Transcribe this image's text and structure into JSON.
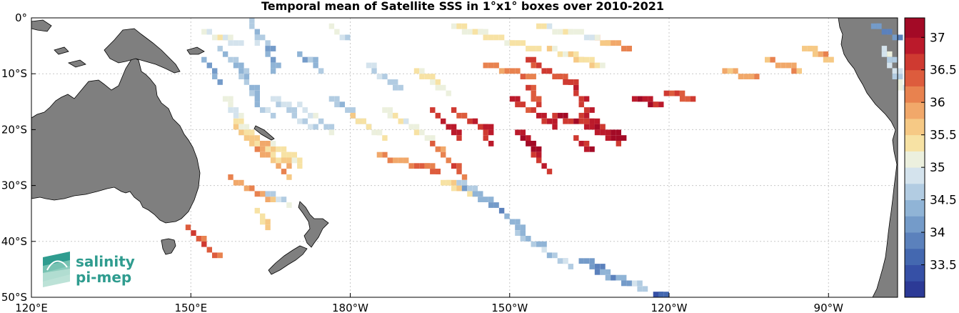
{
  "title": "Temporal mean of Satellite SSS in 1°x1° boxes over 2010-2021",
  "logo": {
    "line1": "salinity",
    "line2": "pi-mep"
  },
  "axes": {
    "x_ticks": [
      {
        "lon": 120,
        "label": "120°E"
      },
      {
        "lon": 150,
        "label": "150°E"
      },
      {
        "lon": 180,
        "label": "180°W"
      },
      {
        "lon": 210,
        "label": "150°W"
      },
      {
        "lon": 240,
        "label": "120°W"
      },
      {
        "lon": 270,
        "label": "90°W"
      }
    ],
    "y_ticks": [
      {
        "lat": 0,
        "label": "0°"
      },
      {
        "lat": -10,
        "label": "10°S"
      },
      {
        "lat": -20,
        "label": "20°S"
      },
      {
        "lat": -30,
        "label": "30°S"
      },
      {
        "lat": -40,
        "label": "40°S"
      },
      {
        "lat": -50,
        "label": "50°S"
      }
    ],
    "lon_range": [
      120,
      283
    ],
    "lat_range": [
      -50,
      0
    ],
    "grid": true
  },
  "colorbar": {
    "range": [
      33.0,
      37.3
    ],
    "tick_labels": [
      "37",
      "36.5",
      "36",
      "35.5",
      "35",
      "34.5",
      "34",
      "33.5"
    ],
    "tick_values": [
      37,
      36.5,
      36,
      35.5,
      35,
      34.5,
      34,
      33.5
    ],
    "colors": [
      "#2c3a96",
      "#3650a6",
      "#4468b0",
      "#5b81bc",
      "#749bc9",
      "#90b4d6",
      "#b2cce2",
      "#d4e3ed",
      "#ecf0de",
      "#f7e2a4",
      "#f6c985",
      "#f1a86a",
      "#e8824f",
      "#dd5c3d",
      "#cf3a31",
      "#bb1a2b",
      "#a30a26"
    ],
    "color_min": 33.0,
    "color_step": 0.25
  },
  "chart_data": {
    "type": "heatmap",
    "variable": "SSS",
    "units": "pss",
    "segments": [
      {
        "lon": [
          152,
          158
        ],
        "lat": [
          -2,
          -4
        ],
        "value": 35.1
      },
      {
        "lon": [
          155,
          160
        ],
        "lat": [
          -5,
          -10
        ],
        "value": 34.5
      },
      {
        "lon": [
          152,
          155
        ],
        "lat": [
          -7,
          -11
        ],
        "value": 34.2
      },
      {
        "lon": [
          159,
          162
        ],
        "lat": [
          -10,
          -14
        ],
        "value": 34.5
      },
      {
        "lon": [
          162,
          165
        ],
        "lat": [
          -15,
          -17
        ],
        "value": 34.6
      },
      {
        "lon": [
          156,
          159
        ],
        "lat": [
          -14,
          -20
        ],
        "value": 35.1
      },
      {
        "lon": [
          158,
          168
        ],
        "lat": [
          -19,
          -26
        ],
        "value": 35.6
      },
      {
        "lon": [
          160,
          168
        ],
        "lat": [
          -21,
          -28
        ],
        "value": 35.9
      },
      {
        "lon": [
          157,
          164
        ],
        "lat": [
          -28,
          -32
        ],
        "value": 36.0
      },
      {
        "lon": [
          164,
          168
        ],
        "lat": [
          -31,
          -33
        ],
        "value": 34.8
      },
      {
        "lon": [
          165,
          170
        ],
        "lat": [
          -22,
          -26
        ],
        "value": 35.2
      },
      {
        "lon": [
          165,
          172
        ],
        "lat": [
          -14,
          -19
        ],
        "value": 34.6
      },
      {
        "lon": [
          170,
          176
        ],
        "lat": [
          -15,
          -20
        ],
        "value": 34.9
      },
      {
        "lon": [
          176,
          183
        ],
        "lat": [
          -14,
          -19
        ],
        "value": 34.5
      },
      {
        "lon": [
          180,
          186
        ],
        "lat": [
          -17,
          -21
        ],
        "value": 35.4
      },
      {
        "lon": [
          186,
          194
        ],
        "lat": [
          -16,
          -21
        ],
        "value": 35.2
      },
      {
        "lon": [
          183,
          188
        ],
        "lat": [
          -8,
          -12
        ],
        "value": 34.7
      },
      {
        "lon": [
          161,
          162
        ],
        "lat": [
          0,
          -4
        ],
        "value": 34.6
      },
      {
        "lon": [
          164,
          165
        ],
        "lat": [
          -4,
          -9
        ],
        "value": 34.4
      },
      {
        "lon": [
          195,
          200
        ],
        "lat": [
          -16,
          -21
        ],
        "value": 36.9
      },
      {
        "lon": [
          199,
          206
        ],
        "lat": [
          -16,
          -20
        ],
        "value": 36.7
      },
      {
        "lon": [
          192,
          198
        ],
        "lat": [
          -9,
          -13
        ],
        "value": 35.4
      },
      {
        "lon": [
          205,
          213
        ],
        "lat": [
          -8,
          -10
        ],
        "value": 36.1
      },
      {
        "lon": [
          213,
          222
        ],
        "lat": [
          -7,
          -12
        ],
        "value": 36.6
      },
      {
        "lon": [
          217,
          226
        ],
        "lat": [
          -5,
          -8
        ],
        "value": 35.4
      },
      {
        "lon": [
          210,
          218
        ],
        "lat": [
          -14,
          -19
        ],
        "value": 36.7
      },
      {
        "lon": [
          218,
          225
        ],
        "lat": [
          -17,
          -19
        ],
        "value": 36.9
      },
      {
        "lon": [
          223,
          230
        ],
        "lat": [
          -17,
          -21
        ],
        "value": 36.9
      },
      {
        "lon": [
          221,
          224
        ],
        "lat": [
          -11,
          -17
        ],
        "value": 36.8
      },
      {
        "lon": [
          211,
          217
        ],
        "lat": [
          -20,
          -27
        ],
        "value": 36.9
      },
      {
        "lon": [
          204,
          206
        ],
        "lat": [
          -19,
          -22
        ],
        "value": 36.8
      },
      {
        "lon": [
          213,
          215
        ],
        "lat": [
          -12,
          -15
        ],
        "value": 36.7
      },
      {
        "lon": [
          226,
          230
        ],
        "lat": [
          -20,
          -22
        ],
        "value": 36.8
      },
      {
        "lon": [
          222,
          224
        ],
        "lat": [
          -21,
          -23
        ],
        "value": 36.8
      },
      {
        "lon": [
          233,
          237
        ],
        "lat": [
          -14,
          -15
        ],
        "value": 36.9
      },
      {
        "lon": [
          239,
          244
        ],
        "lat": [
          -13,
          -14
        ],
        "value": 36.5
      },
      {
        "lon": [
          225,
          232
        ],
        "lat": [
          -3,
          -5
        ],
        "value": 35.9
      },
      {
        "lon": [
          250,
          255
        ],
        "lat": [
          -9,
          -10
        ],
        "value": 35.9
      },
      {
        "lon": [
          258,
          264
        ],
        "lat": [
          -7,
          -9
        ],
        "value": 35.8
      },
      {
        "lon": [
          265,
          270
        ],
        "lat": [
          -5,
          -7
        ],
        "value": 35.6
      },
      {
        "lon": [
          199,
          214
        ],
        "lat": [
          -1,
          -5
        ],
        "value": 35.3
      },
      {
        "lon": [
          215,
          226
        ],
        "lat": [
          -1,
          -3
        ],
        "value": 35.1
      },
      {
        "lon": [
          185,
          196
        ],
        "lat": [
          -24,
          -27
        ],
        "value": 36.1
      },
      {
        "lon": [
          195,
          201
        ],
        "lat": [
          -22,
          -28
        ],
        "value": 36.3
      },
      {
        "lon": [
          197,
          203
        ],
        "lat": [
          -29,
          -31
        ],
        "value": 35.5
      },
      {
        "lon": [
          200,
          206
        ],
        "lat": [
          -29,
          -33
        ],
        "value": 34.4
      },
      {
        "lon": [
          208,
          212
        ],
        "lat": [
          -34,
          -38
        ],
        "value": 34.1
      },
      {
        "lon": [
          211,
          221
        ],
        "lat": [
          -38,
          -44
        ],
        "value": 34.6
      },
      {
        "lon": [
          223,
          227
        ],
        "lat": [
          -43,
          -45
        ],
        "value": 33.9
      },
      {
        "lon": [
          226,
          232
        ],
        "lat": [
          -45,
          -47
        ],
        "value": 34.2
      },
      {
        "lon": [
          233,
          234
        ],
        "lat": [
          -47,
          -48
        ],
        "value": 34.6
      },
      {
        "lon": [
          237,
          238
        ],
        "lat": [
          -49,
          -49
        ],
        "value": 33.5
      },
      {
        "lon": [
          162,
          164
        ],
        "lat": [
          -34,
          -37
        ],
        "value": 35.4
      },
      {
        "lon": [
          149,
          154
        ],
        "lat": [
          -37,
          -42
        ],
        "value": 36.5
      },
      {
        "lon": [
          278,
          283
        ],
        "lat": [
          -1,
          -3
        ],
        "value": 34.0
      },
      {
        "lon": [
          280,
          283
        ],
        "lat": [
          -5,
          -12
        ],
        "value": 34.8
      },
      {
        "lon": [
          176,
          178
        ],
        "lat": [
          -1,
          -3
        ],
        "value": 35.0
      },
      {
        "lon": [
          170,
          174
        ],
        "lat": [
          -6,
          -9
        ],
        "value": 34.4
      }
    ]
  }
}
